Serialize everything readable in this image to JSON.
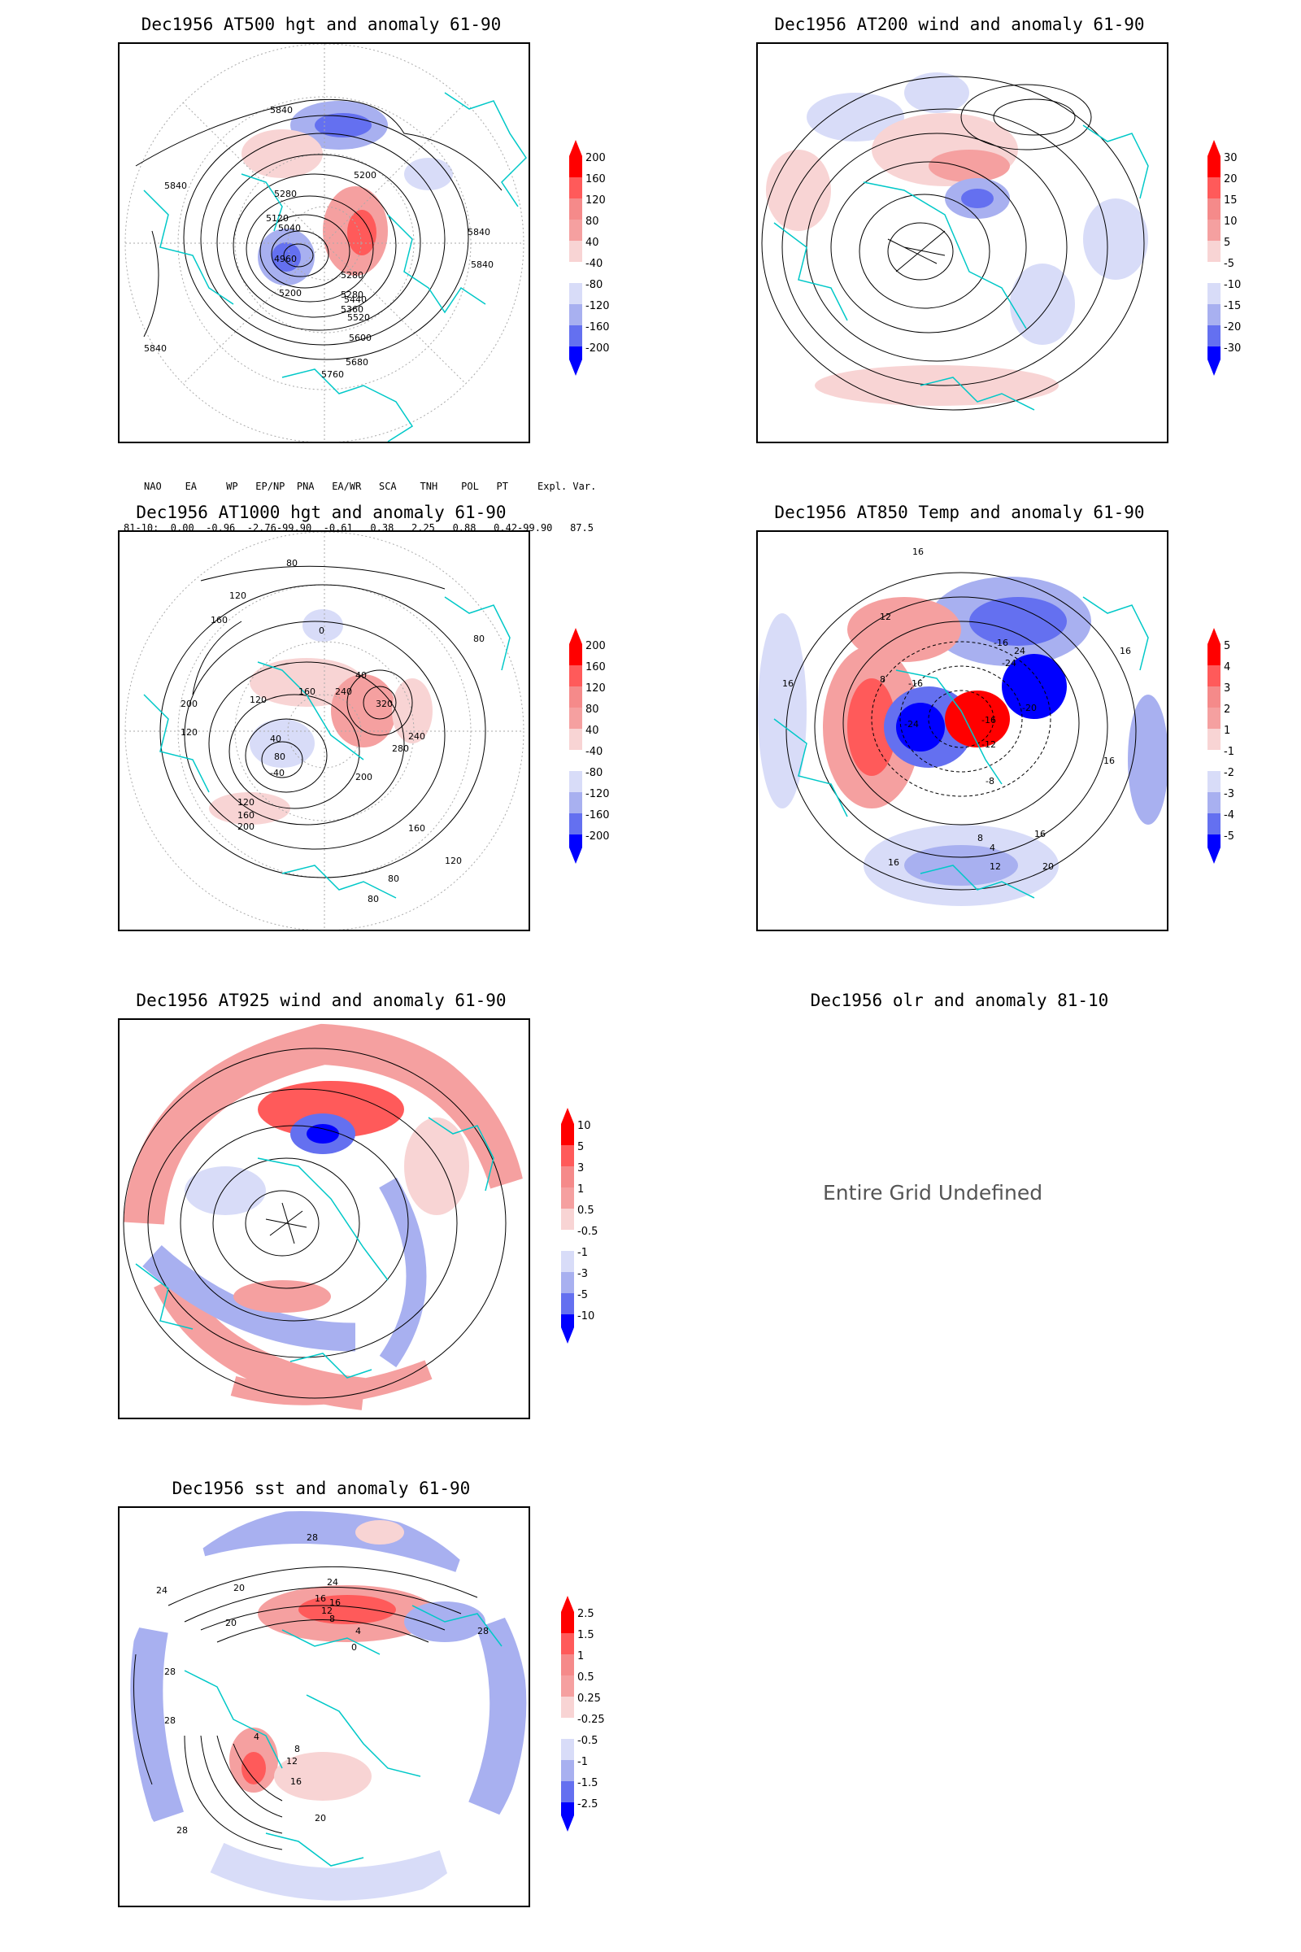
{
  "panels": [
    {
      "id": "p500",
      "title": "Dec1956 AT500 hgt and anomaly 61-90",
      "colorbar": [
        "200",
        "160",
        "120",
        "80",
        "40",
        "-40",
        "-80",
        "-120",
        "-160",
        "-200"
      ],
      "contour_labels": [
        "5840",
        "5840",
        "5840",
        "5840",
        "5840",
        "5280",
        "5280",
        "5200",
        "5120",
        "5040",
        "4960",
        "5200",
        "5280",
        "5360",
        "5440",
        "5520",
        "5600",
        "5680",
        "5760"
      ]
    },
    {
      "id": "p200",
      "title": "Dec1956 AT200 wind and anomaly 61-90",
      "colorbar": [
        "30",
        "20",
        "15",
        "10",
        "5",
        "-5",
        "-10",
        "-15",
        "-20",
        "-30"
      ],
      "contour_labels": []
    },
    {
      "id": "p1000",
      "title": "Dec1956 AT1000 hgt and anomaly 61-90",
      "colorbar": [
        "200",
        "160",
        "120",
        "80",
        "40",
        "-40",
        "-80",
        "-120",
        "-160",
        "-200"
      ],
      "contour_labels": [
        "80",
        "120",
        "160",
        "80",
        "0",
        "40",
        "160",
        "240",
        "320",
        "240",
        "280",
        "200",
        "120",
        "200",
        "120",
        "40",
        "80",
        "-40",
        "120",
        "160",
        "200",
        "160",
        "120",
        "80",
        "80"
      ]
    },
    {
      "id": "p850",
      "title": "Dec1956 AT850 Temp and anomaly 61-90",
      "colorbar": [
        "5",
        "4",
        "3",
        "2",
        "1",
        "-1",
        "-2",
        "-3",
        "-4",
        "-5"
      ],
      "contour_labels": [
        "16",
        "12",
        "16",
        "8",
        "-16",
        "-24",
        "-16",
        "24",
        "-20",
        "-24",
        "-16",
        "16",
        "-12",
        "-8",
        "16",
        "8",
        "4",
        "12",
        "16",
        "20",
        "16"
      ]
    },
    {
      "id": "p925",
      "title": "Dec1956 AT925 wind and anomaly 61-90",
      "colorbar": [
        "10",
        "5",
        "3",
        "1",
        "0.5",
        "-0.5",
        "-1",
        "-3",
        "-5",
        "-10"
      ],
      "contour_labels": []
    },
    {
      "id": "polr",
      "title": "Dec1956 olr and anomaly 81-10",
      "message": "Entire Grid Undefined"
    },
    {
      "id": "psst",
      "title": "Dec1956 sst and anomaly 61-90",
      "colorbar": [
        "2.5",
        "1.5",
        "1",
        "0.5",
        "0.25",
        "-0.25",
        "-0.5",
        "-1",
        "-1.5",
        "-2.5"
      ],
      "contour_labels": [
        "28",
        "24",
        "20",
        "24",
        "16",
        "16",
        "12",
        "8",
        "4",
        "20",
        "28",
        "0",
        "28",
        "4",
        "8",
        "12",
        "16",
        "20",
        "28",
        "28"
      ]
    }
  ],
  "index_table": {
    "header": "NAO    EA     WP   EP/NP  PNA   EA/WR   SCA    TNH    POL   PT     Expl. Var.",
    "row": "81-10:  0.00  -0.96  -2.76-99.90  -0.61   0.38   2.25   0.88   0.42-99.90   87.5"
  },
  "colors": {
    "red_dark": "#ff0000",
    "red_mid": "#ff5a5a",
    "red_light": "#f5a0a0",
    "red_pale": "#f8d4d4",
    "blue_pale": "#d8dcf8",
    "blue_light": "#a8b0f0",
    "blue_mid": "#6470f0",
    "blue_dark": "#0000ff",
    "coast": "#00c8c8",
    "contour": "#000000",
    "grid": "#aaaaaa"
  }
}
